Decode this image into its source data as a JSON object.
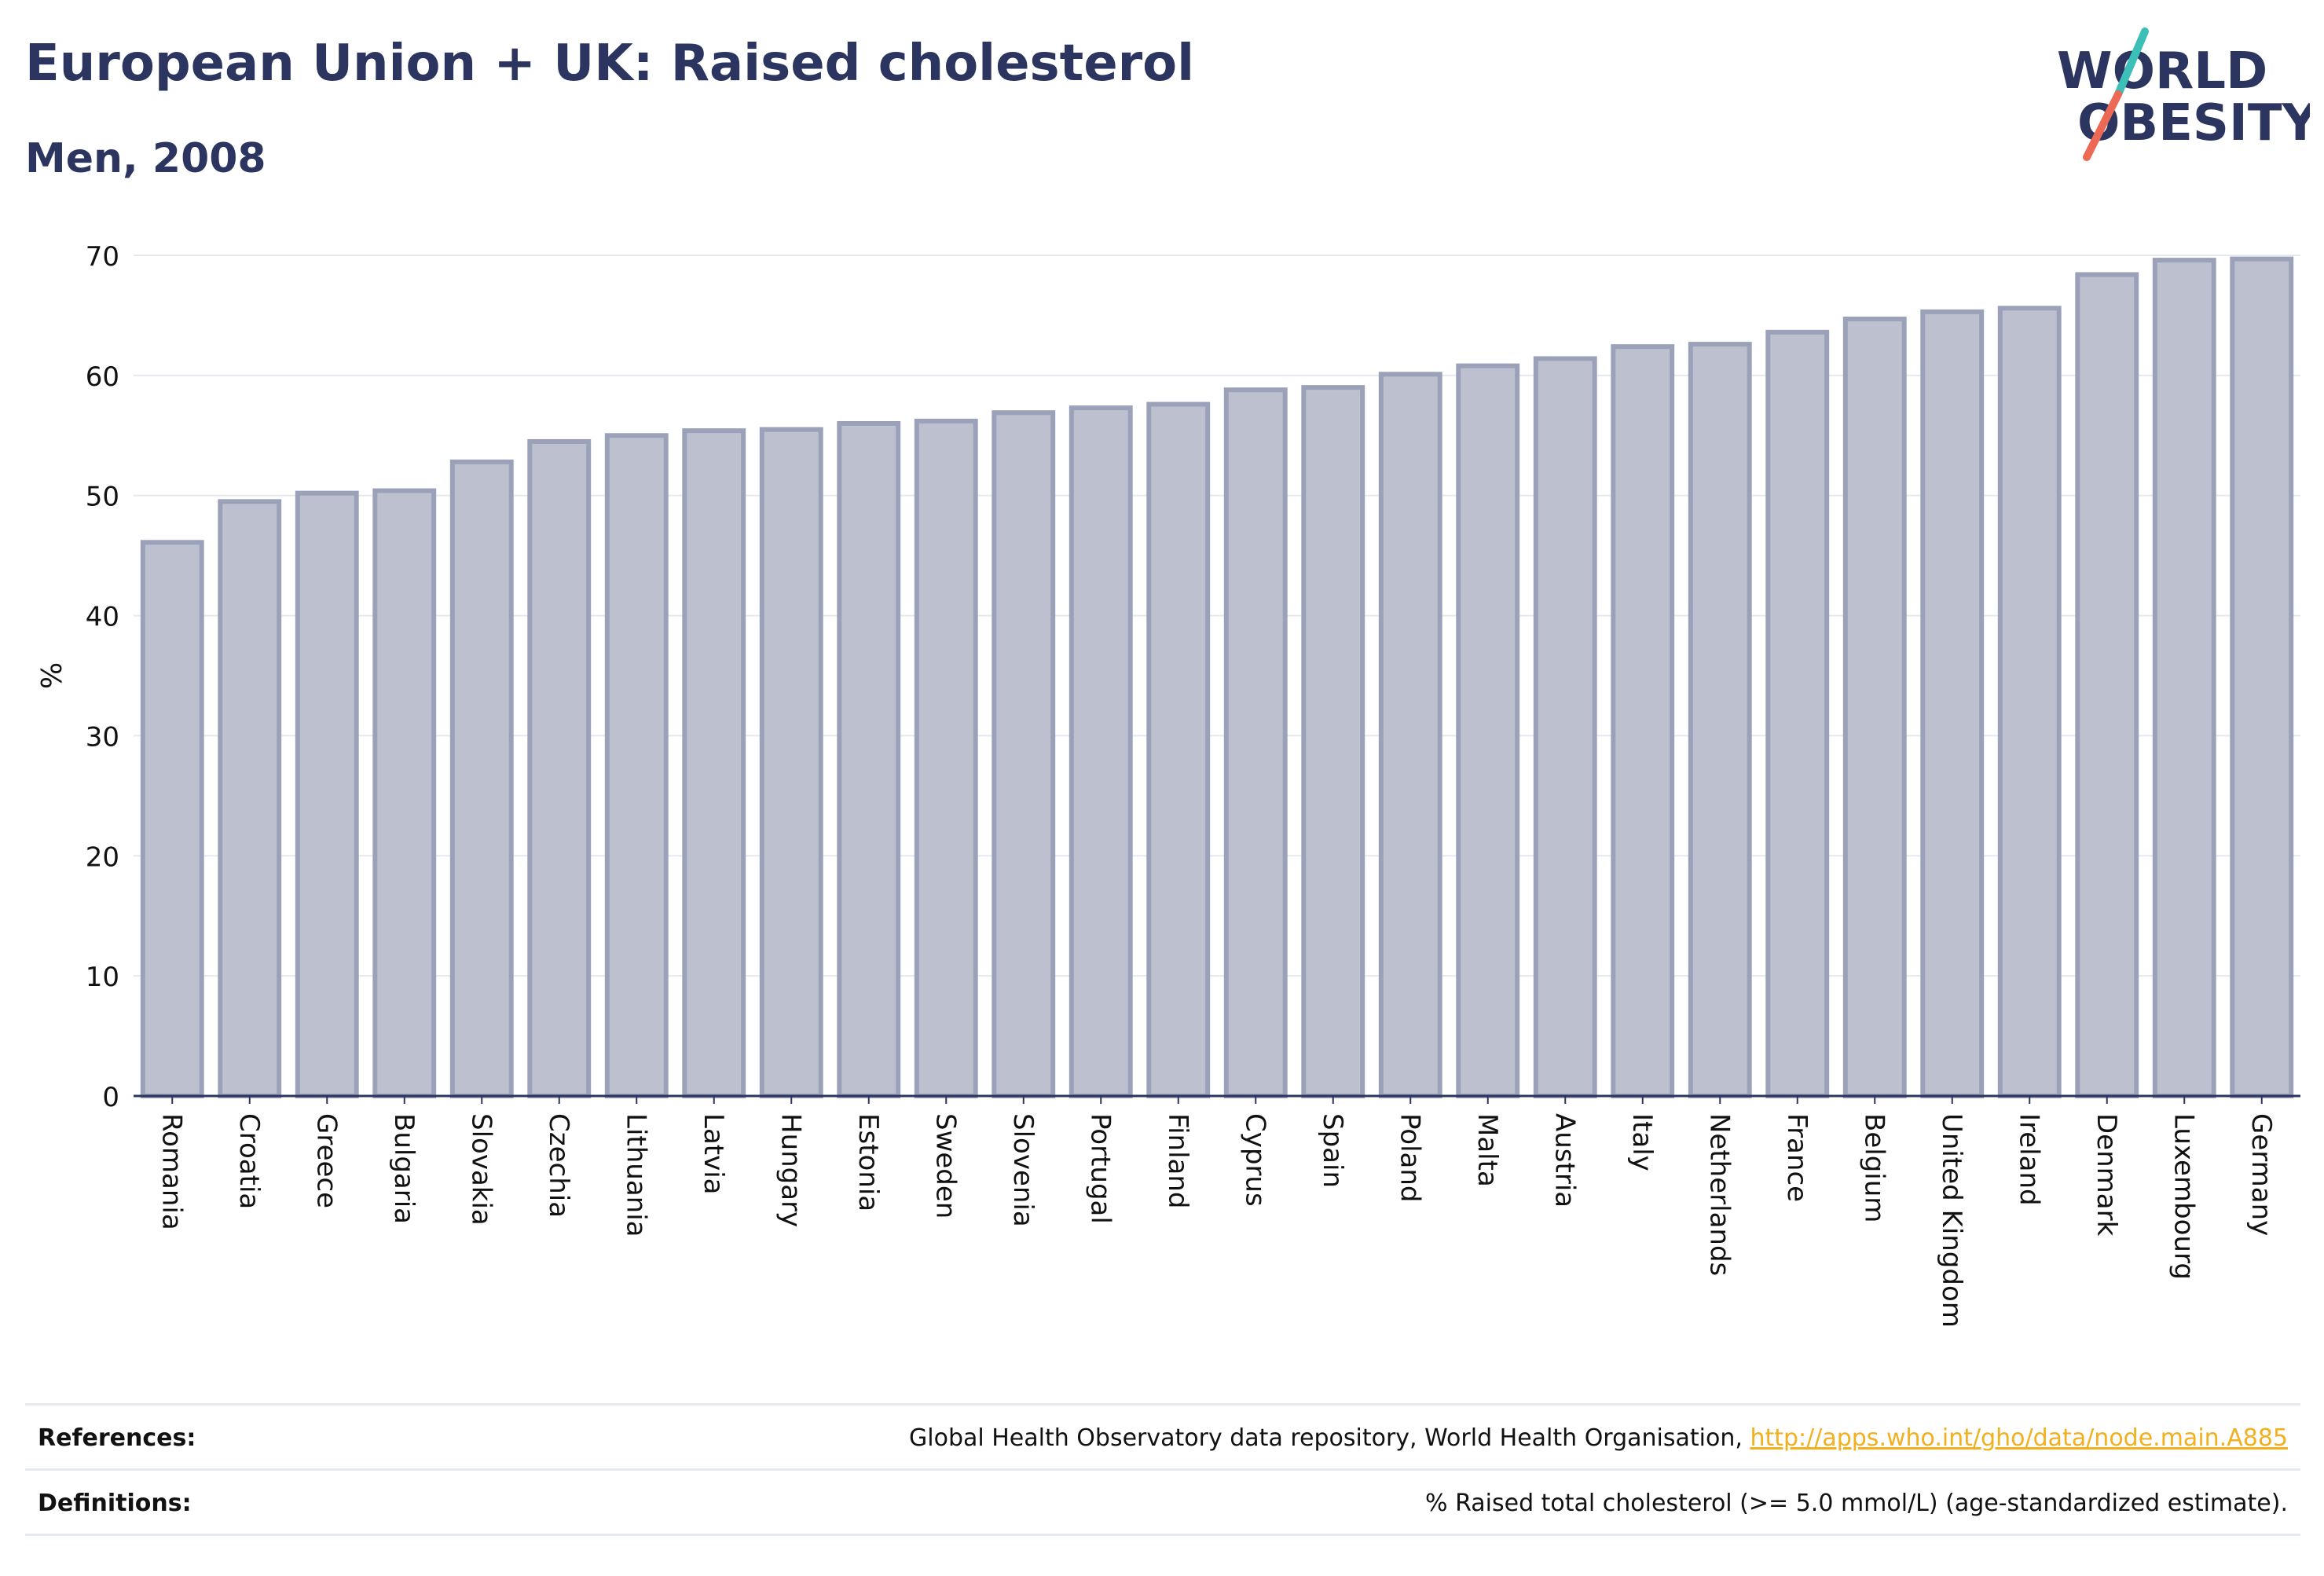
{
  "header": {
    "title": "European Union + UK: Raised cholesterol",
    "subtitle": "Men, 2008"
  },
  "logo": {
    "line1": "WORLD",
    "line2": "OBESITY",
    "colors": {
      "text": "#2b3560",
      "slash_teal": "#3bbfb6",
      "slash_coral": "#ec6a55"
    }
  },
  "chart_data": {
    "type": "bar",
    "title": "",
    "xlabel": "",
    "ylabel": "%",
    "ylim": [
      0,
      70
    ],
    "yticks": [
      0,
      10,
      20,
      30,
      40,
      50,
      60,
      70
    ],
    "grid": true,
    "bar_fill": "#bdc1cf",
    "bar_stroke": "#9aa1b8",
    "categories": [
      "Romania",
      "Croatia",
      "Greece",
      "Bulgaria",
      "Slovakia",
      "Czechia",
      "Lithuania",
      "Latvia",
      "Hungary",
      "Estonia",
      "Sweden",
      "Slovenia",
      "Portugal",
      "Finland",
      "Cyprus",
      "Spain",
      "Poland",
      "Malta",
      "Austria",
      "Italy",
      "Netherlands",
      "France",
      "Belgium",
      "United Kingdom",
      "Ireland",
      "Denmark",
      "Luxembourg",
      "Germany"
    ],
    "values": [
      46.1,
      49.5,
      50.2,
      50.4,
      52.8,
      54.5,
      55.0,
      55.4,
      55.5,
      56.0,
      56.2,
      56.9,
      57.3,
      57.6,
      58.8,
      59.0,
      60.1,
      60.8,
      61.4,
      62.4,
      62.6,
      63.6,
      64.7,
      65.3,
      65.6,
      68.4,
      69.6,
      69.7
    ]
  },
  "footer": {
    "references_label": "References:",
    "references_text": "Global Health Observatory data repository, World Health Organisation, ",
    "references_link": "http://apps.who.int/gho/data/node.main.A885",
    "definitions_label": "Definitions:",
    "definitions_text": "% Raised total cholesterol (>= 5.0 mmol/L) (age-standardized estimate)."
  }
}
